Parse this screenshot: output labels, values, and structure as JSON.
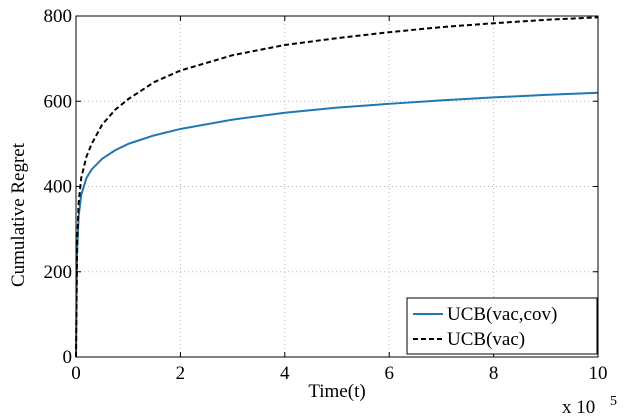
{
  "chart_data": {
    "type": "line",
    "xlabel": "Time(t)",
    "ylabel": "Cumulative Regret",
    "x_multiplier_label": "x 10",
    "x_multiplier_exponent": "5",
    "xlim": [
      0,
      10
    ],
    "ylim": [
      0,
      800
    ],
    "x_ticks": [
      0,
      2,
      4,
      6,
      8,
      10
    ],
    "y_ticks": [
      0,
      200,
      400,
      600,
      800
    ],
    "grid": true,
    "legend_position": "bottom-right",
    "series": [
      {
        "name": "UCB(vac,cov)",
        "color": "#1f77b4",
        "style": "solid",
        "x": [
          0,
          0.02,
          0.05,
          0.1,
          0.2,
          0.3,
          0.5,
          0.75,
          1,
          1.5,
          2,
          3,
          4,
          5,
          6,
          7,
          8,
          9,
          10
        ],
        "y": [
          0,
          240,
          330,
          380,
          420,
          440,
          465,
          485,
          500,
          520,
          535,
          557,
          573,
          585,
          594,
          602,
          609,
          615,
          620
        ]
      },
      {
        "name": "UCB(vac)",
        "color": "#000000",
        "style": "dashed",
        "x": [
          0,
          0.02,
          0.05,
          0.1,
          0.2,
          0.3,
          0.5,
          0.75,
          1,
          1.5,
          2,
          3,
          4,
          5,
          6,
          7,
          8,
          9,
          10
        ],
        "y": [
          0,
          260,
          360,
          420,
          470,
          500,
          545,
          580,
          605,
          645,
          672,
          708,
          732,
          748,
          762,
          774,
          783,
          791,
          797
        ]
      }
    ]
  }
}
